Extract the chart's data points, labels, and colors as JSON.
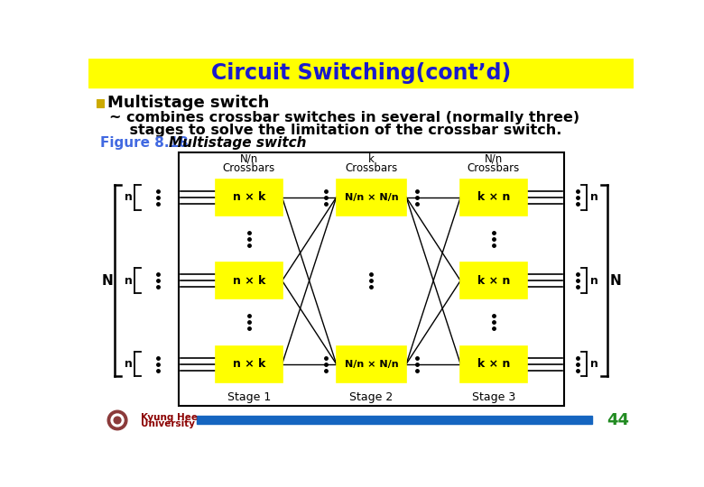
{
  "title": "Circuit Switching(cont’d)",
  "title_color": "#1a1aCC",
  "title_bg": "#FFFF00",
  "bullet_text": "Multistage switch",
  "body_text1": "~ combines crossbar switches in several (normally three)",
  "body_text2": "    stages to solve the limitation of the crossbar switch.",
  "figure_label_blue": "Figure 8.18",
  "figure_label_italic": "Multistage switch",
  "stage1_label": "Stage 1",
  "stage2_label": "Stage 2",
  "stage3_label": "Stage 3",
  "crossbar1_top": "N/n",
  "crossbar1_mid": "Crossbars",
  "crossbar2_top": "k",
  "crossbar2_mid": "Crossbars",
  "crossbar3_top": "N/n",
  "crossbar3_mid": "Crossbars",
  "box1_text": "n × k",
  "box2_text": "N/n × N/n",
  "box3_text": "k × n",
  "N_label": "N",
  "n_label": "n",
  "yellow": "#FFFF00",
  "page_num": "44",
  "blue_bar_color": "#1565C0",
  "fig_label_color": "#4169E1",
  "page_num_color": "#228B22",
  "khu_color": "#8B0000"
}
